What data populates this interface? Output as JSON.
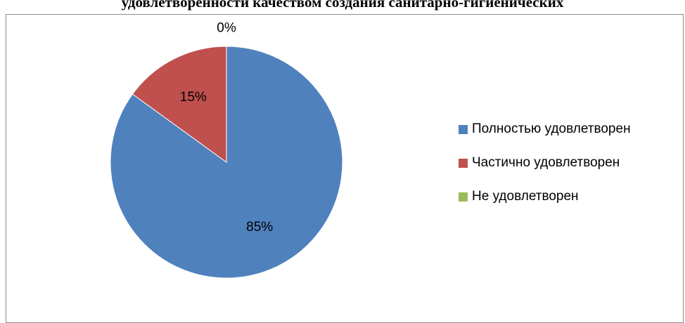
{
  "chart_data": {
    "type": "pie",
    "title": "удовлетворенности качеством создания санитарно-гигиенических",
    "slices": [
      {
        "name": "Полностью удовлетворен",
        "value": 85,
        "label": "85%",
        "color": "#4f81bd"
      },
      {
        "name": "Частично удовлетворен",
        "value": 15,
        "label": "15%",
        "color": "#c0504d"
      },
      {
        "name": "Не удовлетворен",
        "value": 0,
        "label": "0%",
        "color": "#9bbb59"
      }
    ],
    "legend_position": "right"
  }
}
